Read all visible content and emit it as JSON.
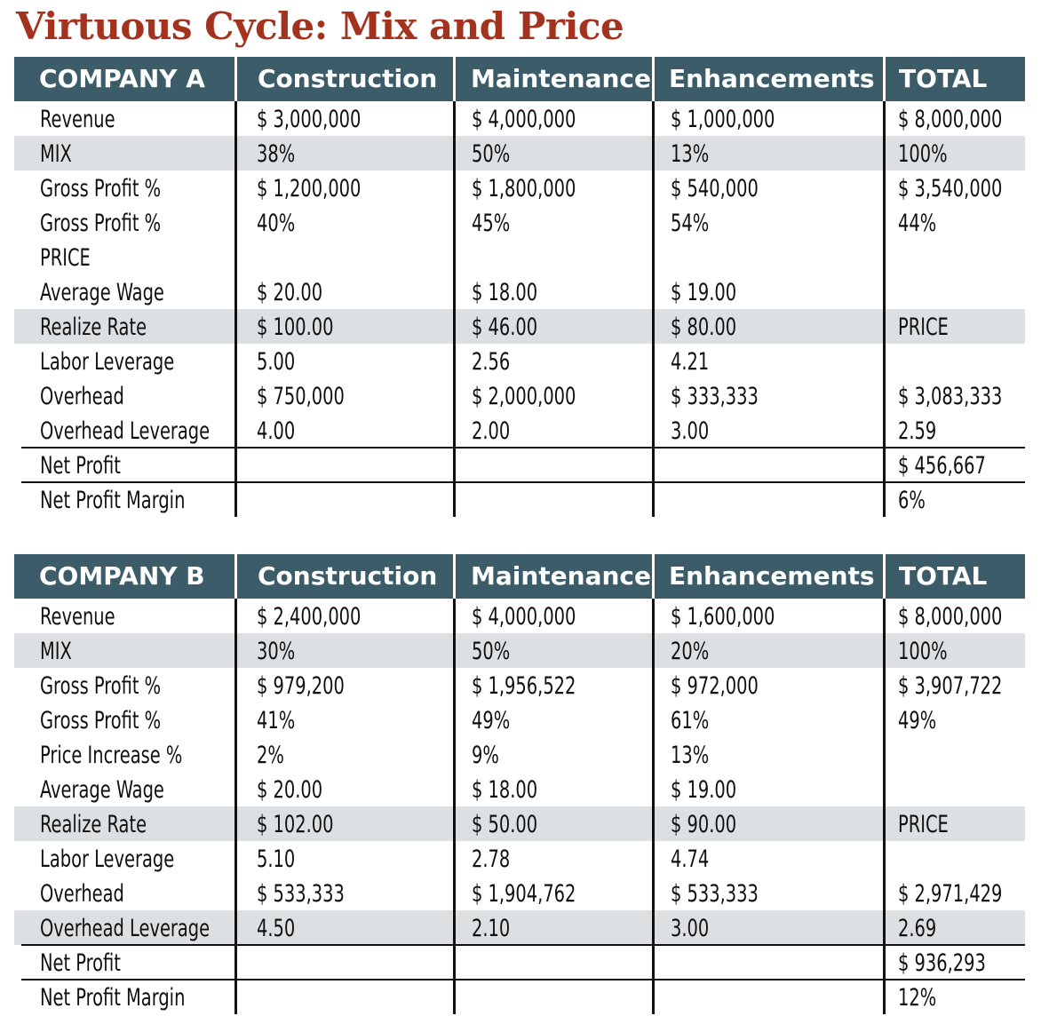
{
  "title": "Virtuous Cycle: Mix and Price",
  "companies": [
    {
      "headers": [
        "COMPANY A",
        "Construction",
        "Maintenance",
        "Enhancements",
        "TOTAL"
      ],
      "rows": [
        {
          "label": "Revenue",
          "values": [
            "$ 3,000,000",
            "$ 4,000,000",
            "$ 1,000,000",
            "$ 8,000,000"
          ],
          "shaded": false
        },
        {
          "label": "MIX",
          "values": [
            "38%",
            "50%",
            "13%",
            "100%"
          ],
          "shaded": true
        },
        {
          "label": "Gross Profit %",
          "values": [
            "$ 1,200,000",
            "$ 1,800,000",
            "$ 540,000",
            "$ 3,540,000"
          ],
          "shaded": false
        },
        {
          "label": "Gross Profit %",
          "values": [
            "40%",
            "45%",
            "54%",
            "44%"
          ],
          "shaded": false
        },
        {
          "label": "PRICE",
          "values": [
            "",
            "",
            "",
            ""
          ],
          "shaded": false
        },
        {
          "label": "Average Wage",
          "values": [
            "$ 20.00",
            "$ 18.00",
            "$ 19.00",
            ""
          ],
          "shaded": false
        },
        {
          "label": "Realize Rate",
          "values": [
            "$ 100.00",
            "$ 46.00",
            "$ 80.00",
            "PRICE"
          ],
          "shaded": true
        },
        {
          "label": "Labor Leverage",
          "values": [
            "5.00",
            "2.56",
            "4.21",
            ""
          ],
          "shaded": false
        },
        {
          "label": "Overhead",
          "values": [
            "$ 750,000",
            "$ 2,000,000",
            "$ 333,333",
            "$ 3,083,333"
          ],
          "shaded": false
        },
        {
          "label": "Overhead Leverage",
          "values": [
            "4.00",
            "2.00",
            "3.00",
            "2.59"
          ],
          "shaded": false
        },
        {
          "label": "Net Profit",
          "values": [
            "",
            "",
            "",
            "$ 456,667"
          ],
          "shaded": false
        },
        {
          "label": "Net Profit Margin",
          "values": [
            "",
            "",
            "",
            "6%"
          ],
          "shaded": false
        }
      ]
    },
    {
      "headers": [
        "COMPANY B",
        "Construction",
        "Maintenance",
        "Enhancements",
        "TOTAL"
      ],
      "rows": [
        {
          "label": "Revenue",
          "values": [
            "$ 2,400,000",
            "$ 4,000,000",
            "$ 1,600,000",
            "$ 8,000,000"
          ],
          "shaded": false
        },
        {
          "label": "MIX",
          "values": [
            "30%",
            "50%",
            "20%",
            "100%"
          ],
          "shaded": true
        },
        {
          "label": "Gross Profit %",
          "values": [
            "$ 979,200",
            "$ 1,956,522",
            "$ 972,000",
            "$ 3,907,722"
          ],
          "shaded": false
        },
        {
          "label": "Gross Profit %",
          "values": [
            "41%",
            "49%",
            "61%",
            "49%"
          ],
          "shaded": false
        },
        {
          "label": "Price Increase %",
          "values": [
            "2%",
            "9%",
            "13%",
            ""
          ],
          "shaded": false
        },
        {
          "label": "Average Wage",
          "values": [
            "$ 20.00",
            "$ 18.00",
            "$ 19.00",
            ""
          ],
          "shaded": false
        },
        {
          "label": "Realize Rate",
          "values": [
            "$ 102.00",
            "$ 50.00",
            "$ 90.00",
            "PRICE"
          ],
          "shaded": true
        },
        {
          "label": "Labor Leverage",
          "values": [
            "5.10",
            "2.78",
            "4.74",
            ""
          ],
          "shaded": false
        },
        {
          "label": "Overhead",
          "values": [
            "$ 533,333",
            "$ 1,904,762",
            "$ 533,333",
            "$ 2,971,429"
          ],
          "shaded": false
        },
        {
          "label": "Overhead Leverage",
          "values": [
            "4.50",
            "2.10",
            "3.00",
            "2.69"
          ],
          "shaded": true
        },
        {
          "label": "Net Profit",
          "values": [
            "",
            "",
            "",
            "$ 936,293"
          ],
          "shaded": false
        },
        {
          "label": "Net Profit Margin",
          "values": [
            "",
            "",
            "",
            "12%"
          ],
          "shaded": false
        }
      ]
    }
  ]
}
